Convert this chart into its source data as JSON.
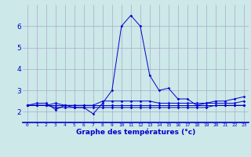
{
  "xlabel": "Graphe des températures (°c)",
  "background_color": "#cce8e8",
  "grid_color": "#aaaacc",
  "line_color": "#0000cc",
  "series": [
    [
      2.3,
      2.4,
      2.4,
      2.1,
      2.3,
      2.2,
      2.2,
      1.9,
      2.4,
      3.0,
      6.0,
      6.5,
      6.0,
      3.7,
      3.0,
      3.1,
      2.6,
      2.6,
      2.3,
      2.4,
      2.5,
      2.5,
      2.6,
      2.7
    ],
    [
      2.3,
      2.3,
      2.3,
      2.3,
      2.3,
      2.3,
      2.3,
      2.3,
      2.3,
      2.3,
      2.3,
      2.3,
      2.3,
      2.3,
      2.3,
      2.3,
      2.3,
      2.3,
      2.3,
      2.3,
      2.3,
      2.3,
      2.3,
      2.3
    ],
    [
      2.3,
      2.3,
      2.3,
      2.3,
      2.3,
      2.3,
      2.3,
      2.3,
      2.3,
      2.3,
      2.3,
      2.3,
      2.3,
      2.3,
      2.3,
      2.3,
      2.3,
      2.3,
      2.3,
      2.3,
      2.3,
      2.3,
      2.3,
      2.3
    ],
    [
      2.3,
      2.3,
      2.3,
      2.4,
      2.3,
      2.3,
      2.3,
      2.3,
      2.5,
      2.5,
      2.5,
      2.5,
      2.5,
      2.5,
      2.4,
      2.4,
      2.4,
      2.4,
      2.4,
      2.4,
      2.4,
      2.4,
      2.4,
      2.5
    ],
    [
      2.3,
      2.3,
      2.3,
      2.2,
      2.2,
      2.2,
      2.2,
      2.2,
      2.2,
      2.2,
      2.2,
      2.2,
      2.2,
      2.2,
      2.2,
      2.2,
      2.2,
      2.2,
      2.2,
      2.2,
      2.3,
      2.3,
      2.3,
      2.3
    ]
  ],
  "x_labels": [
    "0",
    "1",
    "2",
    "3",
    "4",
    "5",
    "6",
    "7",
    "8",
    "9",
    "10",
    "11",
    "12",
    "13",
    "14",
    "15",
    "16",
    "17",
    "18",
    "19",
    "20",
    "21",
    "22",
    "23"
  ],
  "ylim": [
    1.5,
    7.0
  ],
  "yticks": [
    2,
    3,
    4,
    5,
    6
  ],
  "xlim": [
    -0.5,
    23.5
  ]
}
